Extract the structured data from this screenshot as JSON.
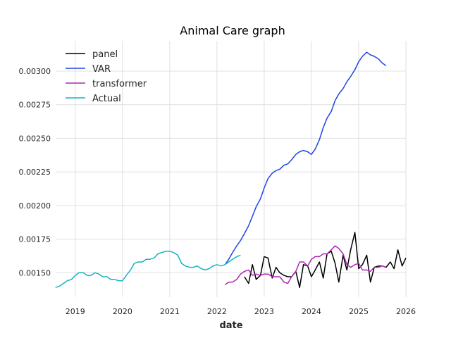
{
  "chart_data": {
    "type": "line",
    "title": "Animal Care graph",
    "xlabel": "date",
    "ylabel": "",
    "xlim": [
      2018.6,
      2026.0
    ],
    "ylim": [
      0.001318,
      0.003225
    ],
    "xticks": [
      {
        "value": 2019,
        "label": "2019"
      },
      {
        "value": 2020,
        "label": "2020"
      },
      {
        "value": 2021,
        "label": "2021"
      },
      {
        "value": 2022,
        "label": "2022"
      },
      {
        "value": 2023,
        "label": "2023"
      },
      {
        "value": 2024,
        "label": "2024"
      },
      {
        "value": 2025,
        "label": "2025"
      },
      {
        "value": 2026,
        "label": "2026"
      }
    ],
    "yticks": [
      {
        "value": 0.0015,
        "label": "0.00150"
      },
      {
        "value": 0.00175,
        "label": "0.00175"
      },
      {
        "value": 0.002,
        "label": "0.00200"
      },
      {
        "value": 0.00225,
        "label": "0.00225"
      },
      {
        "value": 0.0025,
        "label": "0.00250"
      },
      {
        "value": 0.00275,
        "label": "0.00275"
      },
      {
        "value": 0.003,
        "label": "0.00300"
      }
    ],
    "grid": true,
    "legend_position": "top-left",
    "series": [
      {
        "name": "panel",
        "color": "#000000",
        "x": [
          2022.58,
          2022.67,
          2022.75,
          2022.83,
          2022.92,
          2023.0,
          2023.08,
          2023.17,
          2023.25,
          2023.33,
          2023.42,
          2023.5,
          2023.58,
          2023.67,
          2023.75,
          2023.83,
          2023.92,
          2024.0,
          2024.08,
          2024.17,
          2024.25,
          2024.33,
          2024.42,
          2024.5,
          2024.58,
          2024.67,
          2024.75,
          2024.83,
          2024.92,
          2025.0,
          2025.08,
          2025.17,
          2025.25,
          2025.33,
          2025.42,
          2025.5,
          2025.58,
          2025.67,
          2025.75,
          2025.83,
          2025.92,
          2026.0
        ],
        "y": [
          0.00147,
          0.00142,
          0.00156,
          0.00145,
          0.00148,
          0.00162,
          0.00161,
          0.00146,
          0.00154,
          0.0015,
          0.00148,
          0.00147,
          0.00147,
          0.00151,
          0.00139,
          0.00156,
          0.00155,
          0.00147,
          0.00152,
          0.00158,
          0.00146,
          0.00164,
          0.00166,
          0.00157,
          0.00143,
          0.00163,
          0.00152,
          0.00167,
          0.0018,
          0.00153,
          0.00156,
          0.00163,
          0.00143,
          0.00154,
          0.00155,
          0.00155,
          0.00154,
          0.00158,
          0.00153,
          0.00167,
          0.00155,
          0.00161
        ]
      },
      {
        "name": "VAR",
        "color": "#1f45e6",
        "x": [
          2022.17,
          2022.25,
          2022.33,
          2022.42,
          2022.5,
          2022.58,
          2022.67,
          2022.75,
          2022.83,
          2022.92,
          2023.0,
          2023.08,
          2023.17,
          2023.25,
          2023.33,
          2023.42,
          2023.5,
          2023.58,
          2023.67,
          2023.75,
          2023.83,
          2023.92,
          2024.0,
          2024.08,
          2024.17,
          2024.25,
          2024.33,
          2024.42,
          2024.5,
          2024.58,
          2024.67,
          2024.75,
          2024.83,
          2024.92,
          2025.0,
          2025.08,
          2025.17,
          2025.25,
          2025.33,
          2025.42,
          2025.5,
          2025.58
        ],
        "y": [
          0.00156,
          0.0016,
          0.00165,
          0.0017,
          0.00174,
          0.00179,
          0.00185,
          0.00192,
          0.00199,
          0.00205,
          0.00213,
          0.0022,
          0.00224,
          0.00226,
          0.00227,
          0.0023,
          0.00231,
          0.00234,
          0.00238,
          0.0024,
          0.00241,
          0.0024,
          0.00238,
          0.00242,
          0.00249,
          0.00258,
          0.00265,
          0.0027,
          0.00278,
          0.00283,
          0.00287,
          0.00292,
          0.00296,
          0.00301,
          0.00307,
          0.00311,
          0.00314,
          0.00312,
          0.00311,
          0.00309,
          0.00306,
          0.00304
        ]
      },
      {
        "name": "transformer",
        "color": "#b025b5",
        "x": [
          2022.17,
          2022.25,
          2022.33,
          2022.42,
          2022.5,
          2022.58,
          2022.67,
          2022.75,
          2022.83,
          2022.92,
          2023.0,
          2023.08,
          2023.17,
          2023.25,
          2023.33,
          2023.42,
          2023.5,
          2023.58,
          2023.67,
          2023.75,
          2023.83,
          2023.92,
          2024.0,
          2024.08,
          2024.17,
          2024.25,
          2024.33,
          2024.42,
          2024.5,
          2024.58,
          2024.67,
          2024.75,
          2024.83,
          2024.92,
          2025.0,
          2025.08,
          2025.17,
          2025.25,
          2025.33,
          2025.42,
          2025.5,
          2025.58
        ],
        "y": [
          0.00141,
          0.00143,
          0.00143,
          0.00145,
          0.00149,
          0.00151,
          0.00152,
          0.00148,
          0.00149,
          0.00148,
          0.00149,
          0.00149,
          0.00147,
          0.00147,
          0.00147,
          0.00143,
          0.00142,
          0.00147,
          0.00151,
          0.00158,
          0.00158,
          0.00155,
          0.0016,
          0.00162,
          0.00162,
          0.00164,
          0.00164,
          0.00167,
          0.0017,
          0.00168,
          0.00164,
          0.00156,
          0.00154,
          0.00156,
          0.00157,
          0.00152,
          0.00152,
          0.00151,
          0.00154,
          0.00154,
          0.00155,
          0.00154
        ]
      },
      {
        "name": "Actual",
        "color": "#17b3bf",
        "x": [
          2018.58,
          2018.67,
          2018.75,
          2018.83,
          2018.92,
          2019.0,
          2019.08,
          2019.17,
          2019.25,
          2019.33,
          2019.42,
          2019.5,
          2019.58,
          2019.67,
          2019.75,
          2019.83,
          2019.92,
          2020.0,
          2020.08,
          2020.17,
          2020.25,
          2020.33,
          2020.42,
          2020.5,
          2020.58,
          2020.67,
          2020.75,
          2020.83,
          2020.92,
          2021.0,
          2021.08,
          2021.17,
          2021.25,
          2021.33,
          2021.42,
          2021.5,
          2021.58,
          2021.67,
          2021.75,
          2021.83,
          2021.92,
          2022.0,
          2022.08,
          2022.17,
          2022.25,
          2022.33,
          2022.42,
          2022.5
        ],
        "y": [
          0.00139,
          0.0014,
          0.00142,
          0.00144,
          0.00145,
          0.00148,
          0.0015,
          0.0015,
          0.00148,
          0.00148,
          0.0015,
          0.00149,
          0.00147,
          0.00147,
          0.00145,
          0.00145,
          0.00144,
          0.00144,
          0.00148,
          0.00152,
          0.00157,
          0.00158,
          0.00158,
          0.0016,
          0.0016,
          0.00161,
          0.00164,
          0.00165,
          0.00166,
          0.00166,
          0.00165,
          0.00163,
          0.00157,
          0.00155,
          0.00154,
          0.00154,
          0.00155,
          0.00153,
          0.00152,
          0.00153,
          0.00155,
          0.00156,
          0.00155,
          0.00156,
          0.00158,
          0.0016,
          0.00162,
          0.00163
        ]
      }
    ]
  }
}
